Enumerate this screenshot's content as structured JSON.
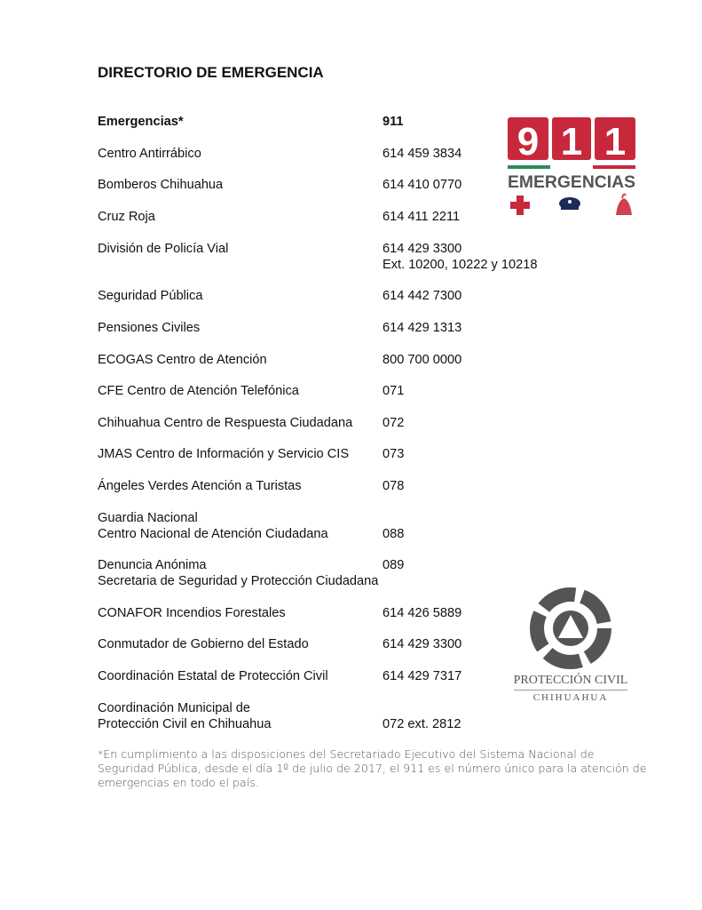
{
  "title": "DIRECTORIO DE EMERGENCIA",
  "entries": [
    {
      "name": [
        "Emergencias*"
      ],
      "number": [
        "911"
      ],
      "bold": true
    },
    {
      "name": [
        "Centro Antirrábico"
      ],
      "number": [
        "614 459 3834"
      ]
    },
    {
      "name": [
        "Bomberos Chihuahua"
      ],
      "number": [
        "614 410 0770"
      ]
    },
    {
      "name": [
        "Cruz Roja"
      ],
      "number": [
        "614 411 2211"
      ]
    },
    {
      "name": [
        "División de Policía Vial"
      ],
      "number": [
        "614 429 3300",
        "Ext. 10200, 10222 y 10218"
      ]
    },
    {
      "name": [
        "Seguridad Pública"
      ],
      "number": [
        "614 442 7300"
      ]
    },
    {
      "name": [
        "Pensiones Civiles"
      ],
      "number": [
        "614 429 1313"
      ]
    },
    {
      "name": [
        "ECOGAS Centro de Atención"
      ],
      "number": [
        "800 700 0000"
      ]
    },
    {
      "name": [
        "CFE Centro de Atención Telefónica"
      ],
      "number": [
        "071"
      ]
    },
    {
      "name": [
        "Chihuahua Centro de Respuesta Ciudadana"
      ],
      "number": [
        "072"
      ]
    },
    {
      "name": [
        "JMAS Centro de Información y Servicio CIS"
      ],
      "number": [
        "073"
      ]
    },
    {
      "name": [
        "Ángeles Verdes Atención a Turistas"
      ],
      "number": [
        "078"
      ]
    },
    {
      "name": [
        "Guardia Nacional",
        "Centro Nacional de Atención Ciudadana"
      ],
      "number": [
        "088"
      ],
      "num_line": 1
    },
    {
      "name": [
        "Denuncia Anónima",
        "Secretaria de Seguridad y Protección Ciudadana"
      ],
      "number": [
        "089"
      ],
      "num_line": 0
    },
    {
      "name": [
        "CONAFOR Incendios Forestales"
      ],
      "number": [
        "614 426 5889"
      ]
    },
    {
      "name": [
        "Conmutador de Gobierno del Estado"
      ],
      "number": [
        "614 429 3300"
      ]
    },
    {
      "name": [
        "Coordinación Estatal de Protección Civil"
      ],
      "number": [
        "614 429 7317"
      ]
    },
    {
      "name": [
        "Coordinación Municipal de",
        "Protección Civil en Chihuahua"
      ],
      "number": [
        "072 ext. 2812"
      ],
      "num_line": 1
    }
  ],
  "footnote": "*En cumplimiento a las disposiciones del Secretariado Ejecutivo del Sistema Nacional de Seguridad Pública, desde el día 1º de julio de 2017, el 911 es el número único para la atención de emergencias en todo el país.",
  "logo_911": {
    "digits": [
      "9",
      "1",
      "1"
    ],
    "text": "EMERGENCIAS",
    "icons": [
      "red-cross-icon",
      "police-cap-icon",
      "fire-helmet-icon"
    ],
    "red": "#c8283c",
    "green": "#2e8b57",
    "gray": "#555555"
  },
  "logo_pc": {
    "line1": "PROTECCIÓN CIVIL",
    "line2": "CHIHUAHUA",
    "gray": "#555555"
  }
}
